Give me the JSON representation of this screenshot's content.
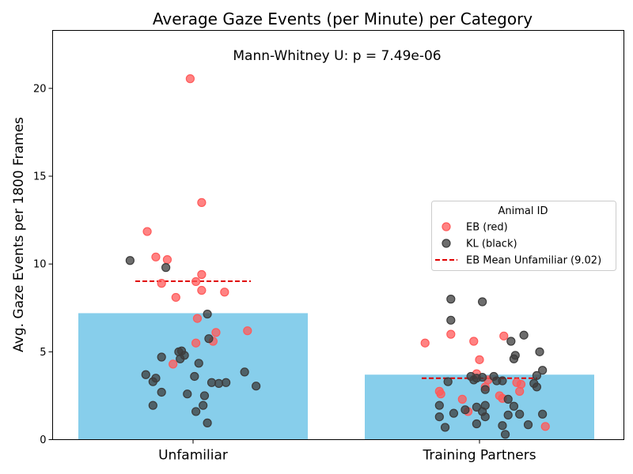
{
  "chart_data": {
    "type": "bar",
    "title": "Average Gaze Events (per Minute) per Category",
    "ylabel": "Avg. Gaze Events per 1800 Frames",
    "xlabel": "",
    "ylim": [
      0,
      23.3
    ],
    "yticks": [
      0,
      5,
      10,
      15,
      20
    ],
    "categories": [
      "Unfamiliar",
      "Training Partners"
    ],
    "values": [
      7.2,
      3.7
    ],
    "bar_color": "#87ceeb",
    "annotation": "Mann-Whitney U: p = 7.49e-06",
    "legend": {
      "title": "Animal ID",
      "placement": "right",
      "entries": [
        {
          "label": "EB (red)",
          "color": "#ff5a5a",
          "kind": "marker"
        },
        {
          "label": "KL (black)",
          "color": "#3c3c3c",
          "kind": "marker"
        },
        {
          "label": "EB Mean Unfamiliar (9.02)",
          "color": "#e00000",
          "kind": "dashed-line"
        }
      ]
    },
    "mean_lines": [
      {
        "category": "Unfamiliar",
        "value": 9.02,
        "color": "#e00000"
      },
      {
        "category": "Training Partners",
        "value": 3.5,
        "color": "#e00000"
      }
    ],
    "series": [
      {
        "name": "EB (red)",
        "color": "#ff5a5a",
        "points": [
          {
            "cat": 0,
            "jitter": -0.16,
            "y": 11.85
          },
          {
            "cat": 0,
            "jitter": -0.13,
            "y": 10.4
          },
          {
            "cat": 0,
            "jitter": -0.11,
            "y": 8.9
          },
          {
            "cat": 0,
            "jitter": -0.09,
            "y": 10.25
          },
          {
            "cat": 0,
            "jitter": -0.06,
            "y": 8.1
          },
          {
            "cat": 0,
            "jitter": -0.07,
            "y": 4.3
          },
          {
            "cat": 0,
            "jitter": -0.01,
            "y": 20.55
          },
          {
            "cat": 0,
            "jitter": 0.01,
            "y": 9.0
          },
          {
            "cat": 0,
            "jitter": 0.015,
            "y": 6.9
          },
          {
            "cat": 0,
            "jitter": 0.01,
            "y": 5.5
          },
          {
            "cat": 0,
            "jitter": 0.03,
            "y": 13.5
          },
          {
            "cat": 0,
            "jitter": 0.03,
            "y": 9.4
          },
          {
            "cat": 0,
            "jitter": 0.03,
            "y": 8.5
          },
          {
            "cat": 0,
            "jitter": 0.07,
            "y": 5.6
          },
          {
            "cat": 0,
            "jitter": 0.08,
            "y": 6.1
          },
          {
            "cat": 0,
            "jitter": 0.11,
            "y": 8.4
          },
          {
            "cat": 0,
            "jitter": 0.19,
            "y": 6.2
          },
          {
            "cat": 1,
            "jitter": -0.19,
            "y": 5.5
          },
          {
            "cat": 1,
            "jitter": -0.14,
            "y": 2.75
          },
          {
            "cat": 1,
            "jitter": -0.135,
            "y": 2.6
          },
          {
            "cat": 1,
            "jitter": -0.1,
            "y": 6.0
          },
          {
            "cat": 1,
            "jitter": -0.06,
            "y": 2.3
          },
          {
            "cat": 1,
            "jitter": -0.04,
            "y": 1.6
          },
          {
            "cat": 1,
            "jitter": -0.02,
            "y": 5.6
          },
          {
            "cat": 1,
            "jitter": -0.01,
            "y": 3.75
          },
          {
            "cat": 1,
            "jitter": 0.0,
            "y": 4.55
          },
          {
            "cat": 1,
            "jitter": 0.02,
            "y": 3.0
          },
          {
            "cat": 1,
            "jitter": 0.03,
            "y": 3.4
          },
          {
            "cat": 1,
            "jitter": 0.07,
            "y": 2.5
          },
          {
            "cat": 1,
            "jitter": 0.08,
            "y": 2.35
          },
          {
            "cat": 1,
            "jitter": 0.085,
            "y": 5.9
          },
          {
            "cat": 1,
            "jitter": 0.13,
            "y": 3.25
          },
          {
            "cat": 1,
            "jitter": 0.14,
            "y": 2.75
          },
          {
            "cat": 1,
            "jitter": 0.145,
            "y": 3.15
          },
          {
            "cat": 1,
            "jitter": 0.23,
            "y": 0.75
          }
        ]
      },
      {
        "name": "KL (black)",
        "color": "#3c3c3c",
        "points": [
          {
            "cat": 0,
            "jitter": -0.22,
            "y": 10.2
          },
          {
            "cat": 0,
            "jitter": -0.165,
            "y": 3.7
          },
          {
            "cat": 0,
            "jitter": -0.14,
            "y": 3.3
          },
          {
            "cat": 0,
            "jitter": -0.14,
            "y": 1.95
          },
          {
            "cat": 0,
            "jitter": -0.13,
            "y": 3.5
          },
          {
            "cat": 0,
            "jitter": -0.11,
            "y": 4.7
          },
          {
            "cat": 0,
            "jitter": -0.11,
            "y": 2.7
          },
          {
            "cat": 0,
            "jitter": -0.095,
            "y": 9.8
          },
          {
            "cat": 0,
            "jitter": -0.05,
            "y": 5.0
          },
          {
            "cat": 0,
            "jitter": -0.045,
            "y": 4.6
          },
          {
            "cat": 0,
            "jitter": -0.04,
            "y": 5.05
          },
          {
            "cat": 0,
            "jitter": -0.03,
            "y": 4.8
          },
          {
            "cat": 0,
            "jitter": -0.02,
            "y": 2.6
          },
          {
            "cat": 0,
            "jitter": 0.005,
            "y": 3.6
          },
          {
            "cat": 0,
            "jitter": 0.01,
            "y": 1.6
          },
          {
            "cat": 0,
            "jitter": 0.02,
            "y": 4.35
          },
          {
            "cat": 0,
            "jitter": 0.035,
            "y": 1.95
          },
          {
            "cat": 0,
            "jitter": 0.04,
            "y": 2.5
          },
          {
            "cat": 0,
            "jitter": 0.05,
            "y": 7.15
          },
          {
            "cat": 0,
            "jitter": 0.055,
            "y": 5.75
          },
          {
            "cat": 0,
            "jitter": 0.05,
            "y": 0.95
          },
          {
            "cat": 0,
            "jitter": 0.065,
            "y": 3.25
          },
          {
            "cat": 0,
            "jitter": 0.09,
            "y": 3.2
          },
          {
            "cat": 0,
            "jitter": 0.115,
            "y": 3.25
          },
          {
            "cat": 0,
            "jitter": 0.18,
            "y": 3.85
          },
          {
            "cat": 0,
            "jitter": 0.22,
            "y": 3.05
          },
          {
            "cat": 1,
            "jitter": -0.14,
            "y": 1.95
          },
          {
            "cat": 1,
            "jitter": -0.14,
            "y": 1.3
          },
          {
            "cat": 1,
            "jitter": -0.12,
            "y": 0.7
          },
          {
            "cat": 1,
            "jitter": -0.11,
            "y": 3.3
          },
          {
            "cat": 1,
            "jitter": -0.1,
            "y": 8.0
          },
          {
            "cat": 1,
            "jitter": -0.1,
            "y": 6.8
          },
          {
            "cat": 1,
            "jitter": -0.09,
            "y": 1.5
          },
          {
            "cat": 1,
            "jitter": -0.05,
            "y": 1.7
          },
          {
            "cat": 1,
            "jitter": -0.03,
            "y": 3.6
          },
          {
            "cat": 1,
            "jitter": -0.02,
            "y": 3.4
          },
          {
            "cat": 1,
            "jitter": -0.01,
            "y": 3.5
          },
          {
            "cat": 1,
            "jitter": -0.01,
            "y": 1.85
          },
          {
            "cat": 1,
            "jitter": -0.01,
            "y": 0.9
          },
          {
            "cat": 1,
            "jitter": 0.01,
            "y": 7.85
          },
          {
            "cat": 1,
            "jitter": 0.01,
            "y": 3.55
          },
          {
            "cat": 1,
            "jitter": 0.01,
            "y": 1.6
          },
          {
            "cat": 1,
            "jitter": 0.02,
            "y": 2.85
          },
          {
            "cat": 1,
            "jitter": 0.02,
            "y": 1.95
          },
          {
            "cat": 1,
            "jitter": 0.02,
            "y": 1.3
          },
          {
            "cat": 1,
            "jitter": 0.05,
            "y": 3.6
          },
          {
            "cat": 1,
            "jitter": 0.06,
            "y": 3.35
          },
          {
            "cat": 1,
            "jitter": 0.08,
            "y": 3.35
          },
          {
            "cat": 1,
            "jitter": 0.08,
            "y": 0.8
          },
          {
            "cat": 1,
            "jitter": 0.09,
            "y": 0.3
          },
          {
            "cat": 1,
            "jitter": 0.1,
            "y": 2.3
          },
          {
            "cat": 1,
            "jitter": 0.1,
            "y": 1.4
          },
          {
            "cat": 1,
            "jitter": 0.11,
            "y": 5.6
          },
          {
            "cat": 1,
            "jitter": 0.12,
            "y": 4.6
          },
          {
            "cat": 1,
            "jitter": 0.12,
            "y": 1.9
          },
          {
            "cat": 1,
            "jitter": 0.125,
            "y": 4.8
          },
          {
            "cat": 1,
            "jitter": 0.14,
            "y": 1.45
          },
          {
            "cat": 1,
            "jitter": 0.155,
            "y": 5.95
          },
          {
            "cat": 1,
            "jitter": 0.17,
            "y": 0.85
          },
          {
            "cat": 1,
            "jitter": 0.19,
            "y": 3.2
          },
          {
            "cat": 1,
            "jitter": 0.2,
            "y": 3.0
          },
          {
            "cat": 1,
            "jitter": 0.2,
            "y": 3.65
          },
          {
            "cat": 1,
            "jitter": 0.21,
            "y": 5.0
          },
          {
            "cat": 1,
            "jitter": 0.22,
            "y": 3.95
          },
          {
            "cat": 1,
            "jitter": 0.22,
            "y": 1.45
          }
        ]
      }
    ]
  }
}
